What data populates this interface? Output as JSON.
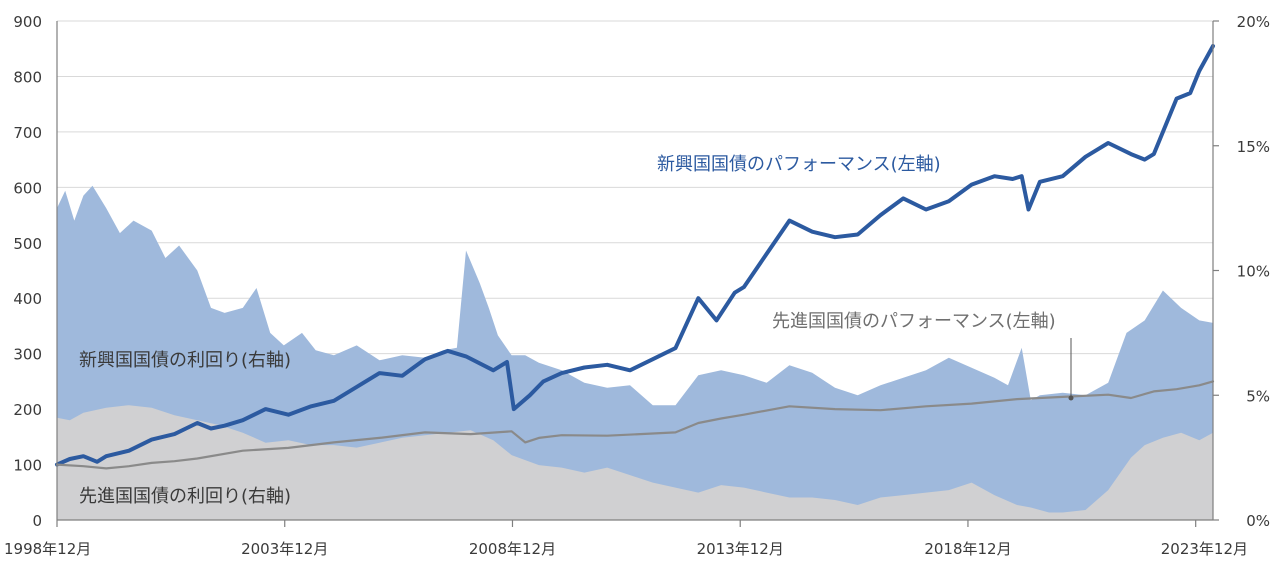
{
  "chart_data": {
    "type": "line",
    "x_ticks": [
      "1998年12月",
      "2003年12月",
      "2008年12月",
      "2013年12月",
      "2018年12月",
      "2023年12月"
    ],
    "y_left": {
      "ticks": [
        "0",
        "100",
        "200",
        "300",
        "400",
        "500",
        "600",
        "700",
        "800",
        "900"
      ],
      "ylim": [
        0,
        900
      ]
    },
    "y_right": {
      "ticks": [
        "0%",
        "5%",
        "10%",
        "15%",
        "20%"
      ],
      "ylim": [
        0,
        20
      ]
    },
    "x_range": [
      1998.92,
      2024.3
    ],
    "grid": true,
    "colors": {
      "em_perf": "#2c5aa0",
      "dm_perf": "#8a8a8a",
      "em_yield": "#9fb9dc",
      "dm_yield": "#d0d0d2",
      "em_label": "#2c5aa0",
      "dm_label": "#6f6f6f",
      "yield_label": "#3a3a3a"
    },
    "annotations": {
      "em_perf": "新興国国債のパフォーマンス(左軸)",
      "dm_perf": "先進国国債のパフォーマンス(左軸)",
      "em_yield": "新興国国債の利回り(右軸)",
      "dm_yield": "先進国国債の利回り(右軸)"
    },
    "series": [
      {
        "key": "em_yield",
        "name": "新興国国債の利回り(右軸)",
        "axis": "right",
        "type": "area",
        "x": [
          1998.92,
          1999.1,
          1999.3,
          1999.5,
          1999.7,
          2000.0,
          2000.3,
          2000.6,
          2001.0,
          2001.3,
          2001.6,
          2002.0,
          2002.3,
          2002.6,
          2003.0,
          2003.3,
          2003.6,
          2003.9,
          2004.3,
          2004.6,
          2005.0,
          2005.5,
          2006.0,
          2006.5,
          2007.0,
          2007.4,
          2007.7,
          2007.9,
          2008.2,
          2008.4,
          2008.6,
          2008.9,
          2009.2,
          2009.5,
          2010.0,
          2010.5,
          2011.0,
          2011.5,
          2012.0,
          2012.5,
          2013.0,
          2013.5,
          2014.0,
          2014.5,
          2015.0,
          2015.5,
          2016.0,
          2016.5,
          2017.0,
          2017.5,
          2018.0,
          2018.5,
          2019.0,
          2019.5,
          2019.8,
          2020.1,
          2020.3,
          2020.5,
          2021.0,
          2021.5,
          2022.0,
          2022.4,
          2022.8,
          2023.2,
          2023.6,
          2024.0,
          2024.3
        ],
        "values": [
          12.5,
          13.2,
          12.0,
          13.0,
          13.4,
          12.5,
          11.5,
          12.0,
          11.6,
          10.5,
          11.0,
          10.0,
          8.5,
          8.3,
          8.5,
          9.3,
          7.5,
          7.0,
          7.5,
          6.8,
          6.6,
          7.0,
          6.4,
          6.6,
          6.5,
          6.8,
          6.9,
          10.8,
          9.5,
          8.5,
          7.4,
          6.6,
          6.6,
          6.3,
          6.0,
          5.5,
          5.3,
          5.4,
          4.6,
          4.6,
          5.8,
          6.0,
          5.8,
          5.5,
          6.2,
          5.9,
          5.3,
          5.0,
          5.4,
          5.7,
          6.0,
          6.5,
          6.1,
          5.7,
          5.4,
          6.9,
          4.8,
          5.0,
          5.1,
          5.0,
          5.5,
          7.5,
          8.0,
          9.2,
          8.5,
          8.0,
          7.9
        ]
      },
      {
        "key": "dm_yield",
        "name": "先進国国債の利回り(右軸)",
        "axis": "right",
        "type": "area",
        "x": [
          1998.92,
          1999.2,
          1999.5,
          2000.0,
          2000.5,
          2001.0,
          2001.5,
          2002.0,
          2002.5,
          2003.0,
          2003.5,
          2004.0,
          2004.5,
          2005.0,
          2005.5,
          2006.0,
          2006.5,
          2007.0,
          2007.5,
          2008.0,
          2008.5,
          2008.9,
          2009.5,
          2010.0,
          2010.5,
          2011.0,
          2011.5,
          2012.0,
          2012.5,
          2013.0,
          2013.5,
          2014.0,
          2014.5,
          2015.0,
          2015.5,
          2016.0,
          2016.5,
          2017.0,
          2017.5,
          2018.0,
          2018.5,
          2019.0,
          2019.5,
          2020.0,
          2020.3,
          2020.7,
          2021.0,
          2021.5,
          2022.0,
          2022.5,
          2022.8,
          2023.2,
          2023.6,
          2024.0,
          2024.3
        ],
        "values": [
          4.1,
          4.0,
          4.3,
          4.5,
          4.6,
          4.5,
          4.2,
          4.0,
          3.8,
          3.5,
          3.1,
          3.2,
          3.0,
          3.0,
          2.9,
          3.1,
          3.3,
          3.4,
          3.5,
          3.6,
          3.2,
          2.6,
          2.2,
          2.1,
          1.9,
          2.1,
          1.8,
          1.5,
          1.3,
          1.1,
          1.4,
          1.3,
          1.1,
          0.9,
          0.9,
          0.8,
          0.6,
          0.9,
          1.0,
          1.1,
          1.2,
          1.5,
          1.0,
          0.6,
          0.5,
          0.3,
          0.3,
          0.4,
          1.2,
          2.5,
          3.0,
          3.3,
          3.5,
          3.2,
          3.5
        ]
      },
      {
        "key": "em_perf",
        "name": "新興国国債のパフォーマンス(左軸)",
        "axis": "left",
        "type": "line",
        "x": [
          1998.92,
          1999.2,
          1999.5,
          1999.8,
          2000.0,
          2000.5,
          2001.0,
          2001.5,
          2002.0,
          2002.3,
          2002.6,
          2003.0,
          2003.5,
          2004.0,
          2004.5,
          2005.0,
          2005.5,
          2006.0,
          2006.5,
          2007.0,
          2007.5,
          2007.9,
          2008.5,
          2008.8,
          2008.95,
          2009.3,
          2009.6,
          2010.0,
          2010.5,
          2011.0,
          2011.5,
          2012.0,
          2012.5,
          2013.0,
          2013.4,
          2013.8,
          2014.0,
          2014.5,
          2015.0,
          2015.5,
          2016.0,
          2016.5,
          2017.0,
          2017.5,
          2018.0,
          2018.5,
          2019.0,
          2019.5,
          2019.9,
          2020.1,
          2020.25,
          2020.5,
          2021.0,
          2021.5,
          2022.0,
          2022.5,
          2022.8,
          2023.0,
          2023.5,
          2023.8,
          2024.0,
          2024.3
        ],
        "values": [
          100,
          110,
          115,
          105,
          115,
          125,
          145,
          155,
          175,
          165,
          170,
          180,
          200,
          190,
          205,
          215,
          240,
          265,
          260,
          290,
          305,
          295,
          270,
          285,
          200,
          225,
          250,
          265,
          275,
          280,
          270,
          290,
          310,
          400,
          360,
          410,
          420,
          480,
          540,
          520,
          510,
          515,
          550,
          580,
          560,
          575,
          605,
          620,
          615,
          620,
          560,
          610,
          620,
          655,
          680,
          660,
          650,
          660,
          760,
          770,
          810,
          855
        ]
      },
      {
        "key": "dm_perf",
        "name": "先進国国債のパフォーマンス(左軸)",
        "axis": "left",
        "type": "line",
        "x": [
          1998.92,
          1999.5,
          2000.0,
          2000.5,
          2001.0,
          2001.5,
          2002.0,
          2003.0,
          2004.0,
          2005.0,
          2006.0,
          2007.0,
          2008.0,
          2008.9,
          2009.2,
          2009.5,
          2010.0,
          2011.0,
          2012.0,
          2012.5,
          2013.0,
          2013.5,
          2014.0,
          2015.0,
          2016.0,
          2017.0,
          2018.0,
          2019.0,
          2020.0,
          2021.0,
          2022.0,
          2022.5,
          2023.0,
          2023.5,
          2024.0,
          2024.3
        ],
        "values": [
          100,
          97,
          93,
          97,
          103,
          106,
          111,
          125,
          130,
          140,
          148,
          158,
          155,
          160,
          140,
          148,
          153,
          152,
          156,
          158,
          175,
          183,
          190,
          205,
          200,
          198,
          205,
          210,
          218,
          222,
          226,
          220,
          232,
          236,
          243,
          250
        ]
      }
    ]
  }
}
